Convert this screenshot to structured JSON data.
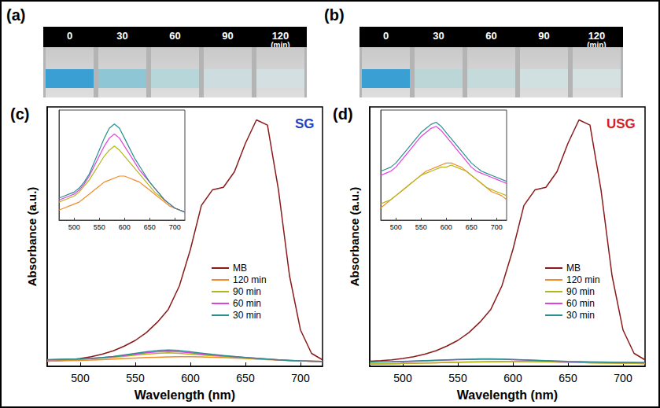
{
  "photo_panels": [
    {
      "letter": "(a)",
      "labels": [
        "0",
        "30",
        "60",
        "90",
        "120"
      ],
      "unit": "(min)",
      "colors": [
        "#3a9fd2",
        "#8ec6d6",
        "#b6d6da",
        "#cddcde",
        "#d3dfe0"
      ]
    },
    {
      "letter": "(b)",
      "labels": [
        "0",
        "30",
        "60",
        "90",
        "120"
      ],
      "unit": "(min)",
      "colors": [
        "#3a9fd2",
        "#bcd6d8",
        "#c4dadb",
        "#d0dfe0",
        "#d5e1e1"
      ]
    }
  ],
  "chart_data": [
    {
      "type": "line",
      "letter": "(c)",
      "annotation": {
        "text": "SG",
        "color": "#1f3fc8"
      },
      "x_label": "Wavelength (nm)",
      "y_label": "Absorbance (a.u.)",
      "x": [
        470,
        480,
        490,
        500,
        510,
        520,
        530,
        540,
        550,
        560,
        570,
        580,
        590,
        600,
        610,
        620,
        630,
        640,
        650,
        660,
        670,
        680,
        690,
        700,
        710,
        720
      ],
      "xlim": [
        470,
        720
      ],
      "xticks": [
        500,
        550,
        600,
        650,
        700
      ],
      "ylim": [
        0,
        1
      ],
      "tick_labels": "x",
      "legend": "right",
      "series": [
        {
          "name": "MB",
          "color": "#8b1a1a",
          "values": [
            0.02,
            0.022,
            0.025,
            0.03,
            0.037,
            0.047,
            0.06,
            0.078,
            0.1,
            0.13,
            0.17,
            0.22,
            0.31,
            0.45,
            0.62,
            0.68,
            0.69,
            0.75,
            0.86,
            0.95,
            0.93,
            0.68,
            0.35,
            0.14,
            0.05,
            0.025
          ]
        },
        {
          "name": "120 min",
          "color": "#f28c28",
          "values": [
            0.02,
            0.021,
            0.022,
            0.023,
            0.024,
            0.026,
            0.028,
            0.03,
            0.032,
            0.034,
            0.035,
            0.036,
            0.037,
            0.037,
            0.036,
            0.035,
            0.034,
            0.032,
            0.03,
            0.028,
            0.026,
            0.024,
            0.022,
            0.021,
            0.02,
            0.019
          ]
        },
        {
          "name": "90 min",
          "color": "#b5b51c",
          "values": [
            0.024,
            0.025,
            0.026,
            0.027,
            0.029,
            0.032,
            0.035,
            0.039,
            0.043,
            0.047,
            0.05,
            0.052,
            0.05,
            0.047,
            0.044,
            0.041,
            0.038,
            0.035,
            0.032,
            0.029,
            0.027,
            0.025,
            0.023,
            0.021,
            0.02,
            0.019
          ]
        },
        {
          "name": "60 min",
          "color": "#e040e0",
          "values": [
            0.025,
            0.026,
            0.027,
            0.028,
            0.03,
            0.033,
            0.037,
            0.042,
            0.047,
            0.052,
            0.056,
            0.058,
            0.056,
            0.052,
            0.048,
            0.044,
            0.04,
            0.037,
            0.034,
            0.031,
            0.028,
            0.025,
            0.023,
            0.021,
            0.02,
            0.019
          ]
        },
        {
          "name": "30 min",
          "color": "#2a8f8f",
          "values": [
            0.026,
            0.027,
            0.028,
            0.029,
            0.031,
            0.034,
            0.038,
            0.044,
            0.05,
            0.056,
            0.061,
            0.063,
            0.061,
            0.056,
            0.051,
            0.046,
            0.042,
            0.038,
            0.034,
            0.031,
            0.028,
            0.025,
            0.023,
            0.021,
            0.02,
            0.019
          ]
        }
      ],
      "inset": {
        "xlim": [
          470,
          720
        ],
        "xticks": [
          500,
          550,
          600,
          650,
          700
        ],
        "ylim": [
          0.015,
          0.07
        ],
        "tick_labels": "x",
        "series_names": [
          "120 min",
          "90 min",
          "60 min",
          "30 min"
        ]
      }
    },
    {
      "type": "line",
      "letter": "(d)",
      "annotation": {
        "text": "USG",
        "color": "#d42020"
      },
      "x_label": "Wavelength (nm)",
      "y_label": "Absorbance (a.u.)",
      "x": [
        470,
        480,
        490,
        500,
        510,
        520,
        530,
        540,
        550,
        560,
        570,
        580,
        590,
        600,
        610,
        620,
        630,
        640,
        650,
        660,
        670,
        680,
        690,
        700,
        710,
        720
      ],
      "xlim": [
        470,
        720
      ],
      "xticks": [
        500,
        550,
        600,
        650,
        700
      ],
      "ylim": [
        0,
        1
      ],
      "tick_labels": "x",
      "legend": "right",
      "series": [
        {
          "name": "MB",
          "color": "#8b1a1a",
          "values": [
            0.02,
            0.022,
            0.025,
            0.03,
            0.037,
            0.047,
            0.06,
            0.078,
            0.1,
            0.13,
            0.17,
            0.22,
            0.31,
            0.45,
            0.62,
            0.68,
            0.69,
            0.75,
            0.86,
            0.95,
            0.93,
            0.68,
            0.35,
            0.14,
            0.05,
            0.025
          ]
        },
        {
          "name": "120 min",
          "color": "#f28c28",
          "values": [
            0.008,
            0.009,
            0.01,
            0.011,
            0.012,
            0.013,
            0.014,
            0.015,
            0.016,
            0.017,
            0.0175,
            0.018,
            0.0185,
            0.019,
            0.019,
            0.0185,
            0.018,
            0.017,
            0.016,
            0.015,
            0.014,
            0.013,
            0.012,
            0.0115,
            0.011,
            0.01
          ]
        },
        {
          "name": "90 min",
          "color": "#b5b51c",
          "values": [
            0.009,
            0.0095,
            0.01,
            0.011,
            0.012,
            0.013,
            0.014,
            0.015,
            0.016,
            0.0165,
            0.017,
            0.0175,
            0.018,
            0.018,
            0.0185,
            0.018,
            0.0175,
            0.017,
            0.016,
            0.015,
            0.014,
            0.013,
            0.0125,
            0.012,
            0.0115,
            0.011
          ]
        },
        {
          "name": "60 min",
          "color": "#e040e0",
          "values": [
            0.016,
            0.0165,
            0.017,
            0.018,
            0.0195,
            0.021,
            0.0225,
            0.024,
            0.0255,
            0.0265,
            0.0275,
            0.028,
            0.027,
            0.0255,
            0.024,
            0.0225,
            0.021,
            0.0195,
            0.018,
            0.017,
            0.0165,
            0.016,
            0.0155,
            0.015,
            0.0145,
            0.014
          ]
        },
        {
          "name": "30 min",
          "color": "#2a8f8f",
          "values": [
            0.017,
            0.0175,
            0.018,
            0.019,
            0.0205,
            0.022,
            0.0235,
            0.025,
            0.0265,
            0.0275,
            0.0285,
            0.029,
            0.028,
            0.0265,
            0.025,
            0.0235,
            0.022,
            0.0205,
            0.019,
            0.018,
            0.017,
            0.0165,
            0.016,
            0.0155,
            0.015,
            0.0145
          ]
        }
      ],
      "inset": {
        "xlim": [
          470,
          720
        ],
        "xticks": [
          500,
          550,
          600,
          650,
          700
        ],
        "ylim": [
          0.005,
          0.032
        ],
        "tick_labels": "x",
        "series_names": [
          "120 min",
          "90 min",
          "60 min",
          "30 min"
        ]
      }
    }
  ]
}
